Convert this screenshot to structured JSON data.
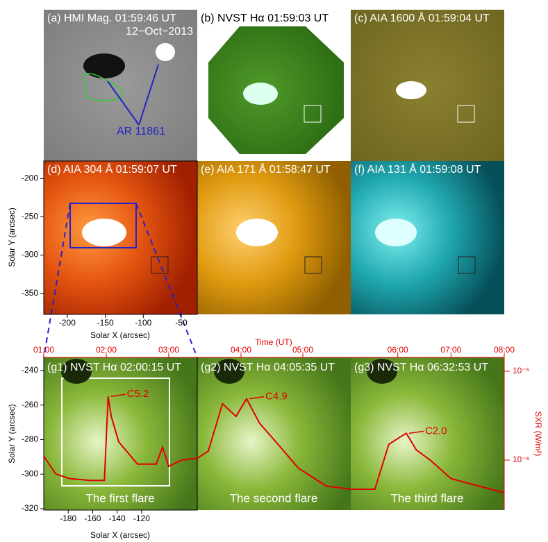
{
  "panels": [
    {
      "label": "(a) HMI Mag. 01:59:46 UT",
      "date": "12−Oct−2013",
      "arrow_label": "AR 11861"
    },
    {
      "label": "(b) NVST Hα 01:59:03 UT"
    },
    {
      "label": "(c) AIA 1600 Å 01:59:04 UT"
    },
    {
      "label": "(d) AIA 304 Å 01:59:07 UT"
    },
    {
      "label": "(e) AIA 171 Å 01:58:47 UT"
    },
    {
      "label": "(f) AIA 131 Å 01:59:08 UT"
    },
    {
      "label": "(g1) NVST Hα 02:00:15 UT",
      "flare_label": "The first flare"
    },
    {
      "label": "(g2) NVST Hα 04:05:35 UT",
      "flare_label": "The second flare"
    },
    {
      "label": "(g3) NVST Hα 06:32:53 UT",
      "flare_label": "The third flare"
    }
  ],
  "axis_d": {
    "xlabel": "Solar X (arcsec)",
    "ylabel": "Solar Y (arcsec)",
    "xlim": [
      -231,
      -29
    ],
    "ylim": [
      -377.5,
      -177
    ],
    "xticks": [
      -200,
      -150,
      -100,
      -50
    ],
    "yticks": [
      -350,
      -300,
      -250,
      -200
    ]
  },
  "axis_g": {
    "xlabel": "Solar X (arcsec)",
    "ylabel": "Solar Y (arcsec)",
    "xlim": [
      -200,
      -74.5
    ],
    "ylim": [
      -320.8,
      -232.4
    ],
    "xticks": [
      -180,
      -160,
      -140,
      -120
    ],
    "yticks": [
      -320,
      -300,
      -280,
      -260,
      -240
    ]
  },
  "sxr": {
    "type": "line",
    "xlabel": "Time (UT)",
    "ylabel": "SXR (W/m²)",
    "log_y": true,
    "color": "#e00000",
    "ylim": [
      2.74e-07,
      1.43e-05
    ],
    "yticks": [
      {
        "value": 1e-06,
        "label": "10⁻⁶"
      },
      {
        "value": 1e-05,
        "label": "10⁻⁵"
      }
    ],
    "segments": [
      {
        "xlim": [
          1,
          3.456
        ],
        "xticks": [
          {
            "value": 1,
            "label": "01:00"
          },
          {
            "value": 2,
            "label": "02:00"
          },
          {
            "value": 3,
            "label": "03:00"
          }
        ],
        "x": [
          1.0,
          1.19,
          1.41,
          1.74,
          1.97,
          2.03,
          2.08,
          2.2,
          2.5,
          2.8,
          2.9,
          3.0,
          3.2,
          3.456
        ],
        "values": [
          1.11e-06,
          7e-07,
          6.2e-07,
          5.9e-07,
          5.9e-07,
          5.2e-06,
          3.1e-06,
          1.6e-06,
          9e-07,
          9e-07,
          1.4e-06,
          8.5e-07,
          1e-06,
          1.05e-06
        ],
        "peak_label": "C5.2"
      },
      {
        "xlim": [
          3.292,
          5.775
        ],
        "xticks": [
          {
            "value": 4,
            "label": "04:00"
          },
          {
            "value": 5,
            "label": "05:00"
          }
        ],
        "x": [
          3.292,
          3.47,
          3.7,
          3.92,
          4.09,
          4.3,
          4.6,
          4.93,
          5.38,
          5.775
        ],
        "values": [
          1.05e-06,
          1.26e-06,
          4.3e-06,
          3.1e-06,
          4.9e-06,
          2.6e-06,
          1.5e-06,
          8.1e-07,
          5.1e-07,
          4.7e-07
        ],
        "peak_label": "C4.9"
      },
      {
        "xlim": [
          5.117,
          8.0
        ],
        "xticks": [
          {
            "value": 6,
            "label": "06:00"
          },
          {
            "value": 7,
            "label": "07:00"
          },
          {
            "value": 8,
            "label": "08:00"
          }
        ],
        "x": [
          5.117,
          5.57,
          5.83,
          6.03,
          6.16,
          6.35,
          6.61,
          7.0,
          7.52,
          8.0
        ],
        "values": [
          4.7e-07,
          4.7e-07,
          1.5e-06,
          1.8e-06,
          2e-06,
          1.3e-06,
          1e-06,
          6.2e-07,
          5.1e-07,
          4.3e-07
        ],
        "peak_label": "C2.0"
      }
    ]
  }
}
